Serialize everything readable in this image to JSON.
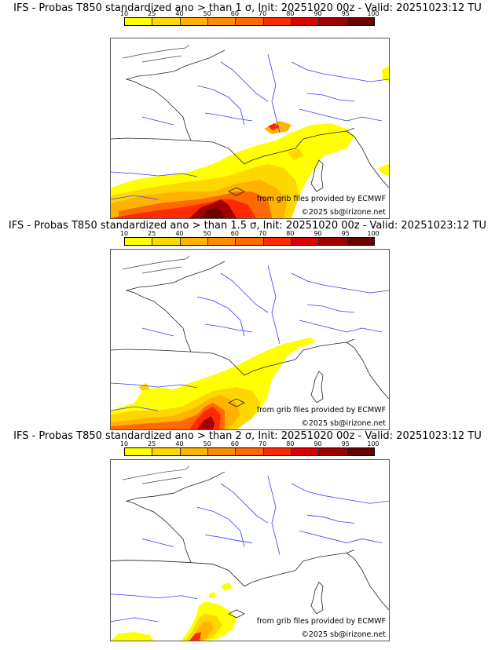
{
  "colorbar": {
    "ticks": [
      "10",
      "25",
      "40",
      "50",
      "60",
      "70",
      "80",
      "90",
      "95",
      "100"
    ],
    "colors": [
      "#ffff00",
      "#ffd700",
      "#ffb300",
      "#ff8c00",
      "#ff6a00",
      "#ff2a00",
      "#dd0000",
      "#a00000",
      "#6a0000"
    ]
  },
  "panels": [
    {
      "title": "IFS - Probas T850  standardized ano > than 1 σ, Init: 20251020 00z - Valid: 20251023:12 TU",
      "threshold_sigma": 1
    },
    {
      "title": "IFS - Probas T850  standardized ano > than 1.5 σ, Init: 20251020 00z - Valid: 20251023:12 TU",
      "threshold_sigma": 1.5
    },
    {
      "title": "IFS - Probas T850  standardized ano > than 2 σ, Init: 20251020 00z - Valid: 20251023:12 TU",
      "threshold_sigma": 2
    }
  ],
  "credits": {
    "source": "from grib files provided by ECMWF",
    "copyright": "©2025 sb@irizone.net"
  }
}
